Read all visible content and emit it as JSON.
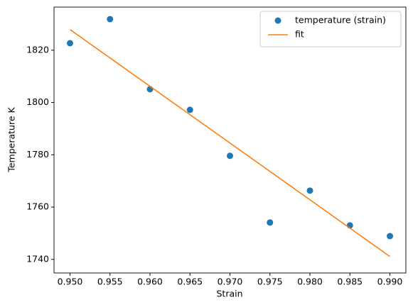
{
  "chart_data": {
    "type": "scatter",
    "xlabel": "Strain",
    "ylabel": "Temperature K",
    "xlim": [
      0.948,
      0.992
    ],
    "xticks": [
      {
        "value": 0.95,
        "label": "0.950"
      },
      {
        "value": 0.955,
        "label": "0.955"
      },
      {
        "value": 0.96,
        "label": "0.960"
      },
      {
        "value": 0.965,
        "label": "0.965"
      },
      {
        "value": 0.97,
        "label": "0.970"
      },
      {
        "value": 0.975,
        "label": "0.975"
      },
      {
        "value": 0.98,
        "label": "0.980"
      },
      {
        "value": 0.985,
        "label": "0.985"
      },
      {
        "value": 0.99,
        "label": "0.990"
      }
    ],
    "ylim": [
      1734.8,
      1836.5
    ],
    "yticks": [
      1740,
      1760,
      1780,
      1800,
      1820
    ],
    "legend": "upper right",
    "series": [
      {
        "name": "temperature (strain)",
        "type": "scatter",
        "color": "#1f77b4",
        "x": [
          0.95,
          0.955,
          0.96,
          0.965,
          0.97,
          0.975,
          0.98,
          0.985,
          0.99
        ],
        "values": [
          1822.7,
          1831.9,
          1805.1,
          1797.2,
          1779.6,
          1754.1,
          1766.3,
          1753.0,
          1748.9
        ]
      },
      {
        "name": "fit",
        "type": "line",
        "color": "#ff7f0e",
        "x": [
          0.95,
          0.99
        ],
        "values": [
          1827.9,
          1741.1
        ]
      }
    ]
  }
}
